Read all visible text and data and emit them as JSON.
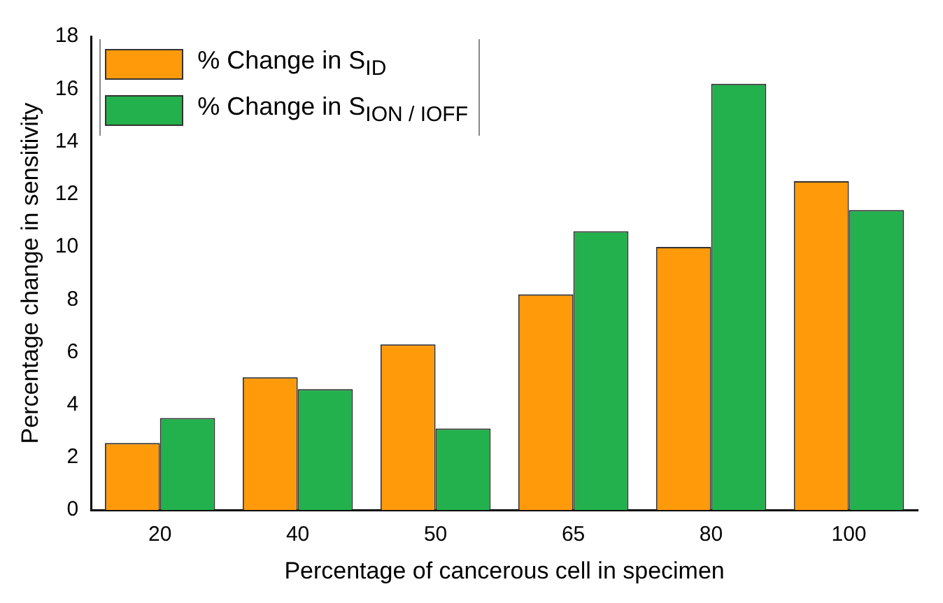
{
  "chart_data": {
    "type": "bar",
    "xlabel": "Percentage of cancerous cell in specimen",
    "ylabel": "Percentage change in sensitivity",
    "categories": [
      "20",
      "40",
      "50",
      "65",
      "80",
      "100"
    ],
    "series": [
      {
        "name": "% Change in S$_{ID}$",
        "color": "#ff9a0a",
        "values": [
          2.55,
          5.05,
          6.3,
          8.2,
          10.0,
          12.5
        ]
      },
      {
        "name": "% Change in S$_{ION / IOFF}$",
        "color": "#22b14c",
        "values": [
          3.5,
          4.6,
          3.1,
          10.6,
          16.2,
          11.4
        ]
      }
    ],
    "ylim": [
      0,
      18
    ],
    "yticks": [
      0,
      2,
      4,
      6,
      8,
      10,
      12,
      14,
      16,
      18
    ],
    "grid": false,
    "legend": "top left"
  }
}
